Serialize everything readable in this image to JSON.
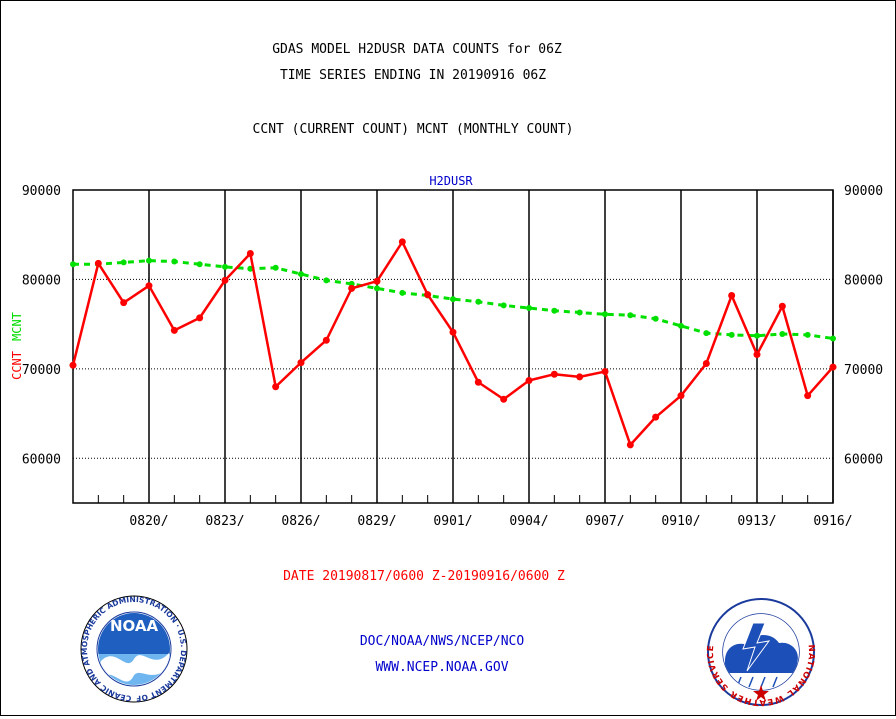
{
  "colors": {
    "current": "#ff0000",
    "monthly": "#00e000",
    "link_blue": "#0000cc",
    "axis": "#000000"
  },
  "header": {
    "title_line1": "GDAS MODEL H2DUSR DATA COUNTS for 06Z",
    "title_line2": "TIME SERIES ENDING IN 20190916 06Z",
    "subtitle": "CCNT (CURRENT COUNT) MCNT (MONTHLY COUNT)"
  },
  "footer": {
    "date_range": "DATE 20190817/0600 Z-20190916/0600 Z",
    "org": "DOC/NOAA/NWS/NCEP/NCO",
    "url": "WWW.NCEP.NOAA.GOV",
    "noaa_logo_text": "NOAA",
    "noaa_ring_text": "NATIONAL OCEANIC AND ATMOSPHERIC ADMINISTRATION · U.S. DEPARTMENT OF COMMERCE",
    "nws_ring_text": "NATIONAL WEATHER SERVICE",
    "noaa_logo_icon": "noaa-seal",
    "nws_logo_icon": "nws-seal"
  },
  "chart_data": {
    "type": "line",
    "title": "H2DUSR",
    "ylabel_left_parts": [
      "CCNT",
      "MCNT"
    ],
    "ylim": [
      55000,
      90000
    ],
    "yticks": [
      60000,
      70000,
      80000,
      90000
    ],
    "ytick_labels": [
      "60000",
      "70000",
      "80000",
      "90000"
    ],
    "xlim": [
      "2019-08-17",
      "2019-09-16"
    ],
    "xticks": [
      "2019-08-20",
      "2019-08-23",
      "2019-08-26",
      "2019-08-29",
      "2019-09-01",
      "2019-09-04",
      "2019-09-07",
      "2019-09-10",
      "2019-09-13",
      "2019-09-16"
    ],
    "xtick_labels": [
      "0820/",
      "0823/",
      "0826/",
      "0829/",
      "0901/",
      "0904/",
      "0907/",
      "0910/",
      "0913/",
      "0916/"
    ],
    "grid": true,
    "x": [
      "2019-08-17",
      "2019-08-18",
      "2019-08-19",
      "2019-08-20",
      "2019-08-21",
      "2019-08-22",
      "2019-08-23",
      "2019-08-24",
      "2019-08-25",
      "2019-08-26",
      "2019-08-27",
      "2019-08-28",
      "2019-08-29",
      "2019-08-30",
      "2019-08-31",
      "2019-09-01",
      "2019-09-02",
      "2019-09-03",
      "2019-09-04",
      "2019-09-05",
      "2019-09-06",
      "2019-09-07",
      "2019-09-08",
      "2019-09-09",
      "2019-09-10",
      "2019-09-11",
      "2019-09-12",
      "2019-09-13",
      "2019-09-14",
      "2019-09-15",
      "2019-09-16"
    ],
    "series": [
      {
        "name": "CCNT",
        "style": "solid",
        "values": [
          70400,
          81800,
          77400,
          79300,
          74300,
          75700,
          79900,
          82900,
          68000,
          70700,
          73200,
          79000,
          79800,
          84200,
          78300,
          74100,
          68500,
          66600,
          68700,
          69400,
          69100,
          69700,
          61500,
          64600,
          67000,
          70600,
          78200,
          71600,
          77000,
          67000,
          70200
        ]
      },
      {
        "name": "MCNT",
        "style": "dashed",
        "values": [
          81700,
          81700,
          81900,
          82100,
          82000,
          81700,
          81400,
          81200,
          81300,
          80600,
          79900,
          79500,
          79000,
          78500,
          78200,
          77800,
          77500,
          77100,
          76800,
          76500,
          76300,
          76100,
          76000,
          75600,
          74800,
          74000,
          73800,
          73700,
          73900,
          73800,
          73400
        ]
      }
    ]
  }
}
